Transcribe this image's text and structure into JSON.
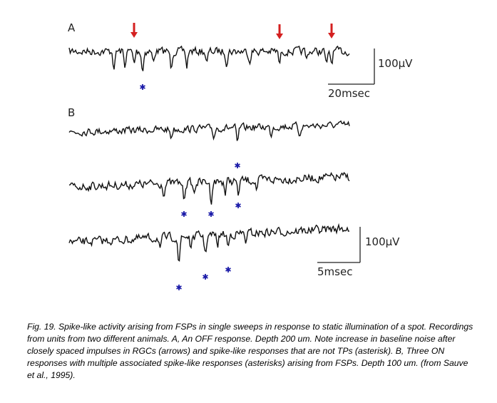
{
  "panel_a": {
    "label": "A",
    "scale_amplitude": "100μV",
    "scale_time": "20msec"
  },
  "panel_b": {
    "label": "B",
    "scale_amplitude": "100μV",
    "scale_time": "5msec"
  },
  "caption": "Fig. 19. Spike-like activity arising from FSPs in single sweeps in response to static illumination of a spot. Recordings from units from two different animals. A, An OFF response. Depth 200 um. Note increase in baseline noise after closely spaced impulses in RGCs (arrows) and spike-like responses that are not TPs (asterisk). B, Three ON responses with multiple associated spike-like responses (asterisks) arising from FSPs. Depth 100 um. (from Sauve et al., 1995)."
}
